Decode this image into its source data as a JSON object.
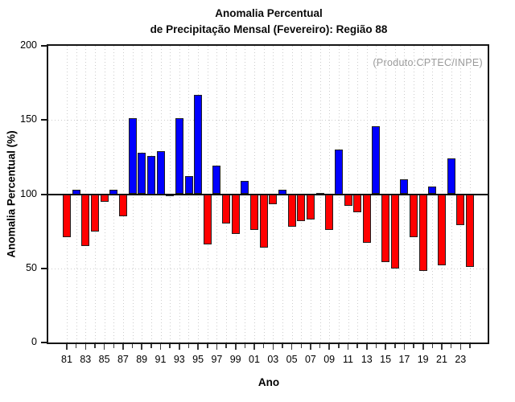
{
  "title": {
    "line1": "Anomalia Percentual",
    "line2": "de Precipitação Mensal (Fevereiro): Região 88"
  },
  "annotation": "(Produto:CPTEC/INPE)",
  "chart_data": {
    "type": "bar",
    "title": "Anomalia Percentual de Precipitação Mensal (Fevereiro): Região 88",
    "xlabel": "Ano",
    "ylabel": "Anomalia Percentual (%)",
    "ylim": [
      0,
      200
    ],
    "yticks": [
      0,
      50,
      100,
      150,
      200
    ],
    "baseline": 100,
    "grid": "dotted light-gray: vertical each year, horizontal at 50 and 150; solid black line at 100",
    "legend_position": "none",
    "x": [
      1981,
      1982,
      1983,
      1984,
      1985,
      1986,
      1987,
      1988,
      1989,
      1990,
      1991,
      1992,
      1993,
      1994,
      1995,
      1996,
      1997,
      1998,
      1999,
      2000,
      2001,
      2002,
      2003,
      2004,
      2005,
      2006,
      2007,
      2008,
      2009,
      2010,
      2011,
      2012,
      2013,
      2014,
      2015,
      2016,
      2017,
      2018,
      2019,
      2020,
      2021,
      2022,
      2023,
      2024
    ],
    "xtick_labels": [
      "81",
      "83",
      "85",
      "87",
      "89",
      "91",
      "93",
      "95",
      "97",
      "99",
      "01",
      "03",
      "05",
      "07",
      "09",
      "11",
      "13",
      "15",
      "17",
      "19",
      "21",
      "23"
    ],
    "values": [
      71,
      103,
      65,
      75,
      95,
      103,
      85,
      151,
      128,
      126,
      129,
      99,
      151,
      112,
      167,
      66,
      119,
      80,
      73,
      109,
      76,
      64,
      93,
      103,
      78,
      82,
      83,
      101,
      76,
      130,
      92,
      88,
      67,
      146,
      54,
      50,
      110,
      71,
      48,
      105,
      52,
      124,
      79,
      51
    ],
    "colors": {
      "above_baseline": "#0000ff",
      "below_baseline": "#ff0000",
      "bar_border": "#1f1f1f",
      "baseline_line": "#000000",
      "grid": "#cccccc",
      "annotation_text": "#9a9a9a"
    }
  }
}
